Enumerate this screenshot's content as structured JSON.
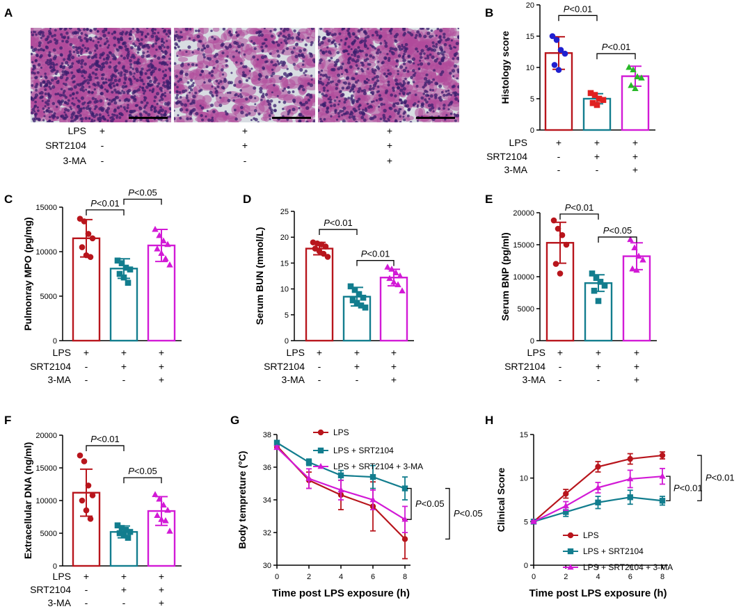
{
  "colors": {
    "red": "#b8151c",
    "teal": "#127d8e",
    "magenta": "#d21ad6",
    "blue": "#2020d0",
    "green": "#27b827",
    "tissue": "#b04a9a",
    "bg": "#d8dde2"
  },
  "panel_a": {
    "label": "A",
    "rows": [
      {
        "name": "LPS",
        "marks": [
          "+",
          "+",
          "+"
        ]
      },
      {
        "name": "SRT2104",
        "marks": [
          "-",
          "+",
          "+"
        ]
      },
      {
        "name": "3-MA",
        "marks": [
          "-",
          "-",
          "+"
        ]
      }
    ]
  },
  "chart_data": [
    {
      "panel": "B",
      "type": "bar",
      "ylabel": "Histology score",
      "ylim": [
        0,
        20
      ],
      "yticks": [
        "0",
        "5",
        "10",
        "15",
        "20"
      ],
      "groups": [
        "LPS",
        "SRT2104",
        "3-MA"
      ],
      "group_marks": [
        [
          "+",
          "+",
          "+"
        ],
        [
          "-",
          "+",
          "+"
        ],
        [
          "-",
          "-",
          "+"
        ]
      ],
      "values": [
        12.3,
        5.0,
        8.6
      ],
      "sd": [
        2.6,
        0.8,
        1.6
      ],
      "points": [
        [
          15.0,
          14.4,
          12.8,
          12.2,
          10.4,
          9.6
        ],
        [
          5.9,
          5.6,
          5.0,
          4.8,
          4.3,
          4.0
        ],
        [
          10.0,
          9.6,
          8.5,
          8.3,
          7.1,
          6.6
        ]
      ],
      "comparisons": [
        {
          "i": 0,
          "j": 1,
          "p_label": "P",
          "p_value": "<0.01",
          "y": 18.3
        },
        {
          "i": 1,
          "j": 2,
          "p_label": "P",
          "p_value": "<0.01",
          "y": 12.2
        }
      ]
    },
    {
      "panel": "C",
      "type": "bar",
      "ylabel": "Pulmonray MPO (pg/mg)",
      "ylim": [
        0,
        15000
      ],
      "yticks": [
        "0",
        "5000",
        "10000",
        "15000"
      ],
      "groups": [
        "LPS",
        "SRT2104",
        "3-MA"
      ],
      "group_marks": [
        [
          "+",
          "+",
          "+"
        ],
        [
          "-",
          "+",
          "+"
        ],
        [
          "-",
          "-",
          "+"
        ]
      ],
      "values": [
        11500,
        8100,
        10700
      ],
      "sd": [
        2100,
        1100,
        1800
      ],
      "points": [
        [
          13700,
          13400,
          12000,
          11500,
          10500,
          9600,
          9400
        ],
        [
          9000,
          8700,
          8200,
          8000,
          7500,
          7100,
          6500
        ],
        [
          12500,
          11800,
          11200,
          10800,
          10300,
          9800,
          9200,
          8500
        ]
      ],
      "comparisons": [
        {
          "i": 0,
          "j": 1,
          "p_label": "P",
          "p_value": "<0.01",
          "y": 14700
        },
        {
          "i": 1,
          "j": 2,
          "p_label": "P",
          "p_value": "<0.05",
          "y": 15900
        }
      ]
    },
    {
      "panel": "D",
      "type": "bar",
      "ylabel": "Serum BUN (mmol/L)",
      "ylim": [
        0,
        25
      ],
      "yticks": [
        "0",
        "5",
        "10",
        "15",
        "20",
        "25"
      ],
      "groups": [
        "LPS",
        "SRT2104",
        "3-MA"
      ],
      "group_marks": [
        [
          "+",
          "+",
          "+"
        ],
        [
          "-",
          "+",
          "+"
        ],
        [
          "-",
          "-",
          "+"
        ]
      ],
      "values": [
        17.8,
        8.5,
        12.2
      ],
      "sd": [
        1.2,
        1.8,
        1.6
      ],
      "points": [
        [
          19.0,
          18.8,
          18.6,
          18.2,
          17.8,
          17.3,
          16.8,
          16.2
        ],
        [
          10.5,
          9.8,
          9.0,
          8.3,
          7.8,
          7.3,
          6.8,
          6.4
        ],
        [
          14.2,
          13.8,
          13.1,
          12.5,
          12.0,
          11.3,
          10.8,
          9.6
        ]
      ],
      "comparisons": [
        {
          "i": 0,
          "j": 1,
          "p_label": "P",
          "p_value": "<0.01",
          "y": 21.5
        },
        {
          "i": 1,
          "j": 2,
          "p_label": "P",
          "p_value": "<0.01",
          "y": 15.5
        }
      ]
    },
    {
      "panel": "E",
      "type": "bar",
      "ylabel": "Serum BNP (pg/ml)",
      "ylim": [
        0,
        20000
      ],
      "yticks": [
        "0",
        "5000",
        "10000",
        "15000",
        "20000"
      ],
      "groups": [
        "LPS",
        "SRT2104",
        "3-MA"
      ],
      "group_marks": [
        [
          "+",
          "+",
          "+"
        ],
        [
          "-",
          "+",
          "+"
        ],
        [
          "-",
          "-",
          "+"
        ]
      ],
      "values": [
        15300,
        9000,
        13200
      ],
      "sd": [
        3200,
        1300,
        2100
      ],
      "points": [
        [
          18800,
          17500,
          16500,
          15000,
          12000,
          10500
        ],
        [
          10500,
          9800,
          9200,
          8600,
          7800,
          6200
        ],
        [
          15800,
          14500,
          13200,
          12600,
          11200,
          11000
        ]
      ],
      "comparisons": [
        {
          "i": 0,
          "j": 1,
          "p_label": "P",
          "p_value": "<0.01",
          "y": 19800
        },
        {
          "i": 1,
          "j": 2,
          "p_label": "P",
          "p_value": "<0.05",
          "y": 16200
        }
      ]
    },
    {
      "panel": "F",
      "type": "bar",
      "ylabel": "Extracellular DNA (ng/ml)",
      "ylim": [
        0,
        20000
      ],
      "yticks": [
        "0",
        "5000",
        "10000",
        "15000",
        "20000"
      ],
      "groups": [
        "LPS",
        "SRT2104",
        "3-MA"
      ],
      "group_marks": [
        [
          "+",
          "+",
          "+"
        ],
        [
          "-",
          "+",
          "+"
        ],
        [
          "-",
          "-",
          "+"
        ]
      ],
      "values": [
        11200,
        5200,
        8400
      ],
      "sd": [
        3600,
        900,
        2200
      ],
      "points": [
        [
          16900,
          16000,
          12300,
          10800,
          10000,
          8500,
          7200
        ],
        [
          6200,
          5800,
          5500,
          5200,
          5000,
          4700,
          4300
        ],
        [
          10900,
          10200,
          9300,
          8500,
          7700,
          7100,
          6900,
          5300
        ]
      ],
      "comparisons": [
        {
          "i": 0,
          "j": 1,
          "p_label": "P",
          "p_value": "<0.01",
          "y": 18400
        },
        {
          "i": 1,
          "j": 2,
          "p_label": "P",
          "p_value": "<0.05",
          "y": 13500
        }
      ]
    },
    {
      "panel": "G",
      "type": "line",
      "xlabel": "Time post LPS exposure (h)",
      "ylabel": "Body tempreture (°C)",
      "xlim": [
        0,
        8
      ],
      "ylim": [
        30,
        38
      ],
      "xticks": [
        "0",
        "2",
        "4",
        "6",
        "8"
      ],
      "yticks": [
        "30",
        "32",
        "34",
        "36",
        "38"
      ],
      "x": [
        0,
        2,
        4,
        6,
        8
      ],
      "series": [
        {
          "name": "LPS",
          "color": "red",
          "marker": "circle",
          "values": [
            37.3,
            35.2,
            34.3,
            33.6,
            31.6
          ],
          "err": [
            0.1,
            0.5,
            0.9,
            1.5,
            1.2
          ]
        },
        {
          "name": "LPS + SRT2104",
          "color": "teal",
          "marker": "square",
          "values": [
            37.5,
            36.3,
            35.5,
            35.4,
            34.7
          ],
          "err": [
            0.1,
            0.2,
            0.3,
            0.7,
            0.7
          ]
        },
        {
          "name": "LPS + SRT2104 + 3-MA",
          "color": "magenta",
          "marker": "triangle",
          "values": [
            37.2,
            35.3,
            34.6,
            34.0,
            32.8
          ],
          "err": [
            0.1,
            0.6,
            0.6,
            0.6,
            0.8
          ]
        }
      ],
      "comparisons": [
        {
          "from": "LPS + SRT2104",
          "to": "LPS + SRT2104 + 3-MA",
          "p_label": "P",
          "p_value": "<0.05"
        },
        {
          "from": "LPS + SRT2104",
          "to": "LPS",
          "p_label": "P",
          "p_value": "<0.05"
        }
      ]
    },
    {
      "panel": "H",
      "type": "line",
      "xlabel": "Time post LPS exposure (h)",
      "ylabel": "Clinical Score",
      "xlim": [
        0,
        8
      ],
      "ylim": [
        0,
        15
      ],
      "xticks": [
        "0",
        "2",
        "4",
        "6",
        "8"
      ],
      "yticks": [
        "0",
        "5",
        "10",
        "15"
      ],
      "x": [
        0,
        2,
        4,
        6,
        8
      ],
      "series": [
        {
          "name": "LPS",
          "color": "red",
          "marker": "circle",
          "values": [
            5.0,
            8.2,
            11.3,
            12.2,
            12.6
          ],
          "err": [
            0.1,
            0.5,
            0.6,
            0.6,
            0.4
          ]
        },
        {
          "name": "LPS + SRT2104",
          "color": "teal",
          "marker": "square",
          "values": [
            5.0,
            6.1,
            7.2,
            7.8,
            7.4
          ],
          "err": [
            0.1,
            0.5,
            0.7,
            0.8,
            0.5
          ]
        },
        {
          "name": "LPS + SRT2104 + 3-MA",
          "color": "magenta",
          "marker": "triangle",
          "values": [
            5.0,
            6.8,
            8.9,
            9.9,
            10.2
          ],
          "err": [
            0.1,
            0.5,
            0.6,
            1.0,
            0.9
          ]
        }
      ],
      "comparisons": [
        {
          "from": "LPS + SRT2104 + 3-MA",
          "to": "LPS + SRT2104",
          "p_label": "P",
          "p_value": "<0.01"
        },
        {
          "from": "LPS",
          "to": "LPS + SRT2104",
          "p_label": "P",
          "p_value": "<0.01"
        }
      ]
    }
  ]
}
